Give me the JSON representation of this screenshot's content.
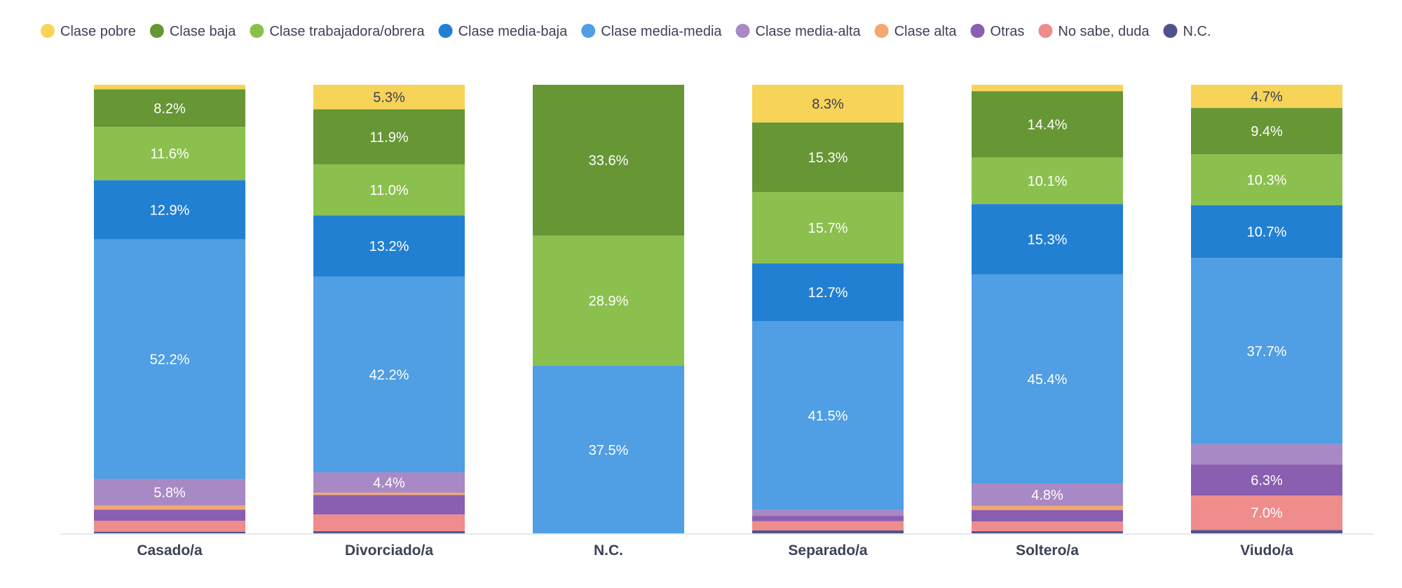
{
  "chart_data": {
    "type": "bar",
    "stacked": true,
    "normalized_to_percent": true,
    "ylim": [
      0,
      100
    ],
    "legend_position": "top",
    "grid": false,
    "categories": [
      "Casado/a",
      "Divorciado/a",
      "N.C.",
      "Separado/a",
      "Soltero/a",
      "Viudo/a"
    ],
    "series": [
      {
        "name": "Clase pobre",
        "color": "#f7d358",
        "values": [
          1.0,
          5.3,
          0.0,
          8.3,
          1.4,
          4.7
        ]
      },
      {
        "name": "Clase baja",
        "color": "#679635",
        "values": [
          8.2,
          11.9,
          33.6,
          15.3,
          14.4,
          9.4
        ]
      },
      {
        "name": "Clase trabajadora/obrera",
        "color": "#8bc04f",
        "values": [
          11.6,
          11.0,
          28.9,
          15.7,
          10.1,
          10.3
        ]
      },
      {
        "name": "Clase media-baja",
        "color": "#2280d2",
        "values": [
          12.9,
          13.2,
          0.0,
          12.7,
          15.3,
          10.7
        ]
      },
      {
        "name": "Clase media-media",
        "color": "#509ee3",
        "values": [
          52.2,
          42.2,
          37.5,
          41.5,
          45.4,
          37.7
        ]
      },
      {
        "name": "Clase media-alta",
        "color": "#a989c5",
        "values": [
          5.8,
          4.4,
          0.0,
          1.3,
          4.8,
          4.1
        ]
      },
      {
        "name": "Clase alta",
        "color": "#f2a86f",
        "values": [
          0.9,
          0.5,
          0.0,
          0.0,
          0.9,
          0.0
        ]
      },
      {
        "name": "Otras",
        "color": "#8a5eb0",
        "values": [
          2.4,
          4.2,
          0.0,
          1.2,
          2.5,
          6.3
        ]
      },
      {
        "name": "No sabe, duda",
        "color": "#ef8c8c",
        "values": [
          2.4,
          3.6,
          0.0,
          2.0,
          2.1,
          7.0
        ]
      },
      {
        "name": "N.C.",
        "color": "#51528d",
        "values": [
          0.5,
          0.6,
          0.0,
          0.8,
          0.6,
          0.8
        ]
      }
    ],
    "data_labels": [
      [
        "",
        "8.2%",
        "11.6%",
        "12.9%",
        "52.2%",
        "5.8%",
        "",
        "",
        "",
        ""
      ],
      [
        "5.3%",
        "11.9%",
        "11.0%",
        "13.2%",
        "42.2%",
        "4.4%",
        "",
        "",
        "",
        ""
      ],
      [
        "",
        "33.6%",
        "28.9%",
        "",
        "37.5%",
        "",
        "",
        "",
        "",
        ""
      ],
      [
        "8.3%",
        "15.3%",
        "15.7%",
        "12.7%",
        "41.5%",
        "",
        "",
        "",
        "",
        ""
      ],
      [
        "",
        "14.4%",
        "10.1%",
        "15.3%",
        "45.4%",
        "4.8%",
        "",
        "",
        "",
        ""
      ],
      [
        "4.7%",
        "9.4%",
        "10.3%",
        "10.7%",
        "37.7%",
        "",
        "",
        "6.3%",
        "7.0%",
        ""
      ]
    ],
    "dark_label_series": [
      "Clase pobre"
    ]
  }
}
